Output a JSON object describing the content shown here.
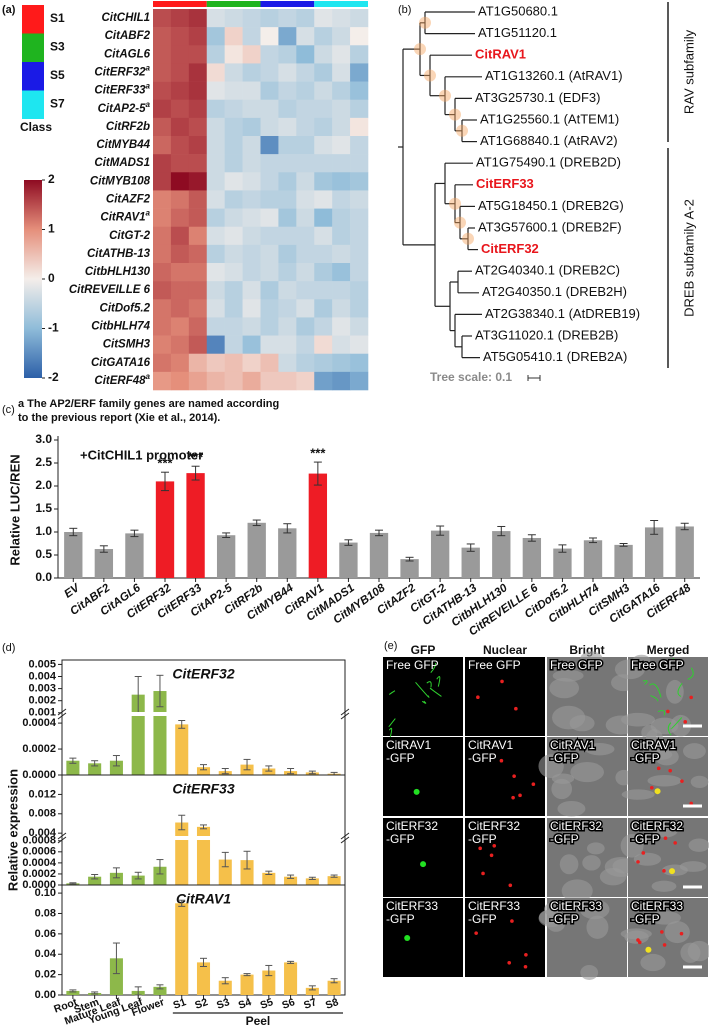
{
  "panel_labels": [
    "(a)",
    "(b)",
    "(c)",
    "(d)",
    "(e)"
  ],
  "chart_data": [
    {
      "type": "heatmap",
      "row_labels": [
        {
          "text": "CitCHIL1"
        },
        {
          "text": "CitABF2"
        },
        {
          "text": "CitAGL6"
        },
        {
          "text": "CitERF32",
          "sup": "a"
        },
        {
          "text": "CitERF33",
          "sup": "a"
        },
        {
          "text": "CitAP2-5",
          "sup": "a"
        },
        {
          "text": "CitRF2b"
        },
        {
          "text": "CitMYB44"
        },
        {
          "text": "CitMADS1"
        },
        {
          "text": "CitMYB108"
        },
        {
          "text": "CitAZF2"
        },
        {
          "text": "CitRAV1",
          "sup": "a"
        },
        {
          "text": "CitGT-2"
        },
        {
          "text": "CitATHB-13"
        },
        {
          "text": "CitbHLH130"
        },
        {
          "text": "CitREVEILLE 6"
        },
        {
          "text": "CitDof5.2"
        },
        {
          "text": "CitbHLH74"
        },
        {
          "text": "CitSMH3"
        },
        {
          "text": "CitGATA16"
        },
        {
          "text": "CitERF48",
          "sup": "a"
        }
      ],
      "classes": [
        {
          "name": "S1",
          "color": "#ff1a1a"
        },
        {
          "name": "S3",
          "color": "#1fb41f"
        },
        {
          "name": "S5",
          "color": "#1a1ae6"
        },
        {
          "name": "S7",
          "color": "#1ee6f0"
        }
      ],
      "class_label": "Class",
      "values": [
        [
          1.5,
          1.6,
          1.7,
          -0.3,
          -0.4,
          -0.5,
          -0.6,
          -0.5,
          -0.6,
          -0.2,
          -0.3,
          -0.4
        ],
        [
          1.4,
          1.5,
          1.6,
          -0.8,
          0.3,
          -0.5,
          0.0,
          -1.2,
          -0.3,
          -0.6,
          -0.4,
          0.0
        ],
        [
          1.4,
          1.5,
          1.5,
          -0.6,
          0.1,
          0.3,
          -0.5,
          -0.6,
          -1.0,
          -0.4,
          -0.2,
          -0.6
        ],
        [
          1.4,
          1.5,
          1.7,
          0.2,
          -0.4,
          -0.6,
          -0.5,
          -0.3,
          -0.5,
          -0.7,
          -0.3,
          -1.2
        ],
        [
          1.5,
          1.6,
          1.7,
          -0.2,
          -0.3,
          -0.3,
          -0.7,
          -0.5,
          -0.6,
          -0.4,
          -0.6,
          -0.9
        ],
        [
          1.6,
          1.5,
          1.6,
          -0.6,
          -0.5,
          -0.4,
          -0.4,
          -0.6,
          -0.5,
          -0.5,
          -0.4,
          -0.6
        ],
        [
          1.4,
          1.6,
          1.5,
          -0.4,
          -0.6,
          -0.7,
          -0.4,
          -0.3,
          -0.5,
          -0.6,
          -0.4,
          0.1
        ],
        [
          1.3,
          1.5,
          1.6,
          -0.4,
          -0.6,
          -0.4,
          -1.5,
          -0.6,
          -0.6,
          -0.3,
          -0.2,
          -0.5
        ],
        [
          1.6,
          1.5,
          1.5,
          -0.4,
          -0.6,
          -0.4,
          -0.5,
          -0.5,
          -0.5,
          -0.5,
          -0.5,
          -0.5
        ],
        [
          1.6,
          2.4,
          1.9,
          -0.4,
          -0.2,
          -0.3,
          -0.5,
          -0.7,
          -0.4,
          -0.8,
          -0.9,
          -0.8
        ],
        [
          1.1,
          1.2,
          1.4,
          -0.3,
          -0.6,
          -0.5,
          -0.6,
          -0.6,
          -0.3,
          -0.2,
          -0.5,
          -0.4
        ],
        [
          1.1,
          1.3,
          1.4,
          -0.6,
          -0.4,
          -0.3,
          -0.2,
          -0.8,
          -0.4,
          -1.0,
          -0.6,
          -0.5
        ],
        [
          1.2,
          1.5,
          1.1,
          -0.3,
          -0.2,
          -0.4,
          -0.5,
          -0.5,
          -0.5,
          -0.3,
          -0.6,
          -0.5
        ],
        [
          1.2,
          1.4,
          1.3,
          -0.6,
          -0.4,
          -0.5,
          -0.4,
          -0.7,
          -0.5,
          -0.5,
          -0.4,
          -0.5
        ],
        [
          1.3,
          1.2,
          1.2,
          -0.2,
          -0.3,
          -0.5,
          -0.4,
          -0.6,
          -0.4,
          -0.7,
          -0.9,
          -0.5
        ],
        [
          1.4,
          1.3,
          1.3,
          -0.4,
          -0.6,
          -0.3,
          -0.7,
          -0.4,
          -0.5,
          -0.5,
          -0.5,
          -0.6
        ],
        [
          1.2,
          1.3,
          1.2,
          -0.3,
          -0.6,
          -0.2,
          -0.6,
          -0.5,
          -0.3,
          -0.7,
          -0.4,
          -0.6
        ],
        [
          1.2,
          1.1,
          1.3,
          -0.5,
          -0.5,
          -0.4,
          -0.6,
          -0.4,
          -0.7,
          -0.5,
          -0.2,
          -0.4
        ],
        [
          1.1,
          1.2,
          1.4,
          -1.6,
          -0.5,
          -0.9,
          -0.3,
          -0.3,
          -0.5,
          0.2,
          -0.3,
          -0.2
        ],
        [
          1.2,
          1.1,
          0.6,
          0.4,
          0.5,
          0.3,
          0.5,
          -0.4,
          -0.6,
          -0.7,
          -0.8,
          -0.9
        ],
        [
          0.9,
          1.0,
          0.8,
          0.6,
          0.5,
          0.7,
          0.4,
          0.4,
          0.3,
          -1.3,
          -1.4,
          -1.2
        ]
      ],
      "colorscale": [
        "#2c5fa8",
        "#8fbcd9",
        "#f4eeea",
        "#e58f7b",
        "#8e0b22"
      ],
      "zlim": [
        -2,
        2
      ],
      "zticks": [
        2,
        1,
        0,
        -1,
        -2
      ],
      "note_lines": [
        "a The AP2/ERF family genes are named according",
        "to the previous report (Xie et al., 2014)."
      ]
    },
    {
      "type": "bar",
      "title": "+CitCHIL1 promoter",
      "ylabel": "Relative LUC/REN",
      "categories": [
        "EV",
        "CitABF2",
        "CitAGL6",
        "CitERF32",
        "CitERF33",
        "CitAP2-5",
        "CitRF2b",
        "CitMYB44",
        "CitRAV1",
        "CitMADS1",
        "CitMYB108",
        "CitAZF2",
        "CitGT-2",
        "CitATHB-13",
        "CitbHLH130",
        "CitREVEILLE 6",
        "CitDof5.2",
        "CitbHLH74",
        "CitSMH3",
        "CitGATA16",
        "CitERF48"
      ],
      "values": [
        1.0,
        0.63,
        0.97,
        2.1,
        2.28,
        0.93,
        1.2,
        1.08,
        2.27,
        0.77,
        0.98,
        0.41,
        1.03,
        0.66,
        1.02,
        0.87,
        0.64,
        0.82,
        0.72,
        1.1,
        1.12
      ],
      "errors": [
        0.08,
        0.07,
        0.07,
        0.2,
        0.15,
        0.05,
        0.06,
        0.1,
        0.25,
        0.06,
        0.06,
        0.04,
        0.1,
        0.08,
        0.1,
        0.07,
        0.08,
        0.05,
        0.03,
        0.15,
        0.07
      ],
      "colors": [
        "#9a9a9a",
        "#9a9a9a",
        "#9a9a9a",
        "#ee1c25",
        "#ee1c25",
        "#9a9a9a",
        "#9a9a9a",
        "#9a9a9a",
        "#ee1c25",
        "#9a9a9a",
        "#9a9a9a",
        "#9a9a9a",
        "#9a9a9a",
        "#9a9a9a",
        "#9a9a9a",
        "#9a9a9a",
        "#9a9a9a",
        "#9a9a9a",
        "#9a9a9a",
        "#9a9a9a",
        "#9a9a9a"
      ],
      "significance": [
        null,
        null,
        null,
        "***",
        "***",
        null,
        null,
        null,
        "***",
        null,
        null,
        null,
        null,
        null,
        null,
        null,
        null,
        null,
        null,
        null,
        null
      ],
      "ylim": [
        0,
        3
      ],
      "yticks": [
        {
          "value": 0,
          "label": "0.0"
        },
        0.5,
        {
          "value": 1,
          "label": "1.0"
        },
        1.5,
        {
          "value": 2,
          "label": "2.0"
        },
        2.5,
        {
          "value": 3,
          "label": "3.0"
        }
      ]
    },
    {
      "type": "bar",
      "ylabel": "Relative expression",
      "categories": [
        "Root",
        "Stem",
        "Mature Leaf",
        "Young Leaf",
        "Flower",
        "S1",
        "S2",
        "S3",
        "S4",
        "S5",
        "S6",
        "S7",
        "S8"
      ],
      "group_label": "Peel",
      "colors": [
        "#8db84a",
        "#8db84a",
        "#8db84a",
        "#8db84a",
        "#8db84a",
        "#f5c04a",
        "#f5c04a",
        "#f5c04a",
        "#f5c04a",
        "#f5c04a",
        "#f5c04a",
        "#f5c04a",
        "#f5c04a"
      ],
      "panels": [
        {
          "title": "CitERF32",
          "values": [
            0.00011,
            9e-05,
            0.00011,
            0.0025,
            0.0028,
            0.00039,
            6e-05,
            3e-05,
            8e-05,
            5e-05,
            3e-05,
            2e-05,
            1e-05
          ],
          "errors": [
            2e-05,
            2e-05,
            4e-05,
            0.0015,
            0.0013,
            3e-05,
            2e-05,
            2e-05,
            4e-05,
            2e-05,
            2e-05,
            1e-05,
            1e-05
          ],
          "y_segments": [
            {
              "ylim": [
                0,
                0.00047
              ],
              "yticks": [
                {
                  "value": 0,
                  "label": "0.0000"
                },
                0.0002,
                0.0004
              ]
            },
            {
              "ylim": [
                0.0009,
                0.0052
              ],
              "yticks": [
                0.001,
                0.002,
                0.003,
                0.004,
                0.005
              ]
            }
          ]
        },
        {
          "title": "CitERF33",
          "values": [
            3e-05,
            0.00015,
            0.00022,
            0.00017,
            0.00033,
            0.0062,
            0.0053,
            0.00046,
            0.00045,
            0.00022,
            0.00015,
            0.00012,
            0.00016
          ],
          "errors": [
            1e-05,
            4e-05,
            9e-05,
            6e-05,
            0.00013,
            0.0015,
            0.0004,
            0.00013,
            0.00016,
            3e-05,
            3e-05,
            2e-05,
            2e-05
          ],
          "y_segments": [
            {
              "ylim": [
                0,
                0.00085
              ],
              "yticks": [
                {
                  "value": 0,
                  "label": "0.0000"
                },
                0.0002,
                0.0004,
                0.0006,
                0.0008
              ]
            },
            {
              "ylim": [
                0.003,
                0.0125
              ],
              "yticks": [
                0.004,
                0.008,
                0.012
              ]
            }
          ]
        },
        {
          "title": "CitRAV1",
          "values": [
            0.004,
            0.002,
            0.036,
            0.004,
            0.008,
            0.09,
            0.032,
            0.014,
            0.02,
            0.024,
            0.032,
            0.007,
            0.014
          ],
          "errors": [
            0.001,
            0.001,
            0.015,
            0.004,
            0.002,
            0.003,
            0.004,
            0.003,
            0.001,
            0.005,
            0.001,
            0.002,
            0.002
          ],
          "y_segments": [
            {
              "ylim": [
                0,
                0.105
              ],
              "yticks": [
                {
                  "value": 0,
                  "label": "0.00"
                },
                0.02,
                0.04,
                0.06,
                0.08,
                {
                  "value": 0.1,
                  "label": "0.10"
                }
              ]
            }
          ]
        }
      ]
    }
  ],
  "tree": {
    "leaves": [
      {
        "label": "AT1G50680.1",
        "color": "#111111"
      },
      {
        "label": "AT1G51120.1",
        "color": "#111111"
      },
      {
        "label": "CitRAV1",
        "color": "#e8161c"
      },
      {
        "label": "AT1G13260.1 (AtRAV1)",
        "color": "#111111"
      },
      {
        "label": "AT3G25730.1 (EDF3)",
        "color": "#111111"
      },
      {
        "label": "AT1G25560.1 (AtTEM1)",
        "color": "#111111"
      },
      {
        "label": "AT1G68840.1 (AtRAV2)",
        "color": "#111111"
      },
      {
        "label": "AT1G75490.1 (DREB2D)",
        "color": "#111111"
      },
      {
        "label": "CitERF33",
        "color": "#e8161c"
      },
      {
        "label": "AT5G18450.1 (DREB2G)",
        "color": "#111111"
      },
      {
        "label": "AT3G57600.1 (DREB2F)",
        "color": "#111111"
      },
      {
        "label": "CitERF32",
        "color": "#e8161c"
      },
      {
        "label": "AT2G40340.1 (DREB2C)",
        "color": "#111111"
      },
      {
        "label": "AT2G40350.1 (DREB2H)",
        "color": "#111111"
      },
      {
        "label": "AT2G38340.1 (AtDREB19)",
        "color": "#111111"
      },
      {
        "label": "AT3G11020.1 (DREB2B)",
        "color": "#111111"
      },
      {
        "label": "AT5G05410.1 (DREB2A)",
        "color": "#111111"
      }
    ],
    "clades": [
      {
        "label": "RAV subfamily"
      },
      {
        "label": "DREB subfamily A-2"
      }
    ],
    "scale_label": "Tree scale: 0.1"
  },
  "micrographs": {
    "columns": [
      "GFP",
      "Nuclear",
      "Bright",
      "Merged"
    ],
    "rows": [
      [
        "Free GFP"
      ],
      [
        "CitRAV1",
        "-GFP"
      ],
      [
        "CitERF32",
        "-GFP"
      ],
      [
        "CitERF33",
        "-GFP"
      ]
    ]
  }
}
